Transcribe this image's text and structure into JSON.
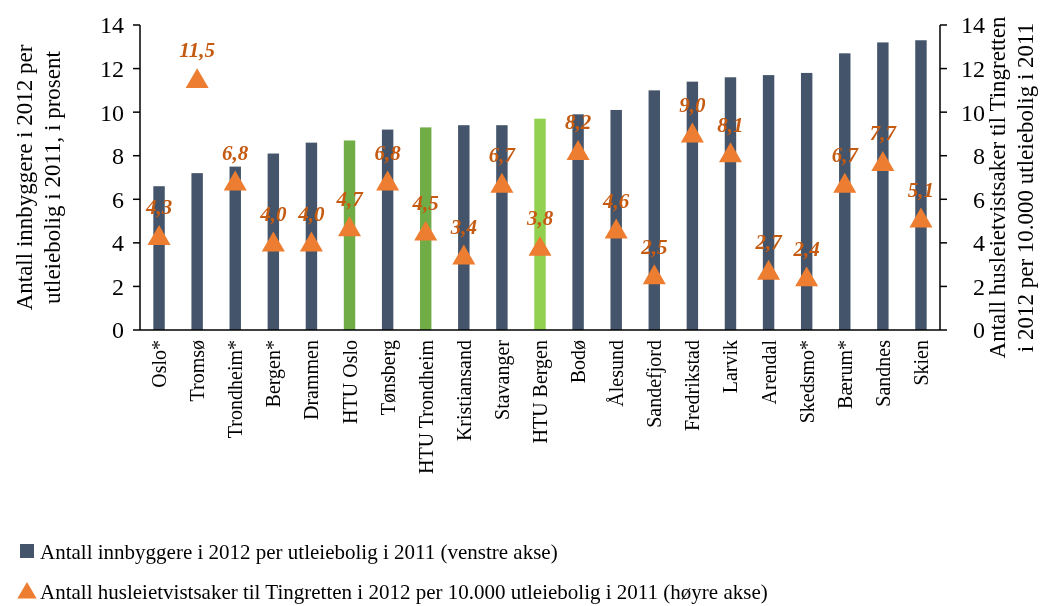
{
  "chart_data": {
    "type": "bar",
    "ylabel": "Antall innbyggere i 2012 per utleiebolig i 2011, i prosent",
    "y2label": "Antall husleietvistsaker til Tingretten i 2012 per 10.000 utleiebolig i 2011",
    "categories": [
      "Oslo*",
      "Tromsø",
      "Trondheim*",
      "Bergen*",
      "Drammen",
      "HTU Oslo",
      "Tønsberg",
      "HTU Trondheim",
      "Kristiansand",
      "Stavanger",
      "HTU Bergen",
      "Bodø",
      "Ålesund",
      "Sandefjord",
      "Fredrikstad",
      "Larvik",
      "Arendal",
      "Skedsmo*",
      "Bærum*",
      "Sandnes",
      "Skien"
    ],
    "series": [
      {
        "name": "Antall innbyggere i 2012 per utleiebolig i 2011 (venstre akse)",
        "type": "bar",
        "color": "#44546a",
        "colors": [
          "#44546a",
          "#44546a",
          "#44546a",
          "#44546a",
          "#44546a",
          "#70ad47",
          "#44546a",
          "#70ad47",
          "#44546a",
          "#44546a",
          "#92d050",
          "#44546a",
          "#44546a",
          "#44546a",
          "#44546a",
          "#44546a",
          "#44546a",
          "#44546a",
          "#44546a",
          "#44546a",
          "#44546a"
        ],
        "values": [
          6.6,
          7.2,
          7.5,
          8.1,
          8.6,
          8.7,
          9.2,
          9.3,
          9.4,
          9.4,
          9.7,
          9.9,
          10.1,
          11.0,
          11.4,
          11.6,
          11.7,
          11.8,
          12.7,
          13.2,
          13.3
        ]
      },
      {
        "name": "Antall husleietvistsaker til Tingretten i 2012 per 10.000 utleiebolig i 2011 (høyre akse)",
        "type": "scatter",
        "axis": "y2",
        "marker": "triangle",
        "color": "#ed7d31",
        "values": [
          4.3,
          11.5,
          6.8,
          4.0,
          4.0,
          4.7,
          6.8,
          4.5,
          3.4,
          6.7,
          3.8,
          8.2,
          4.6,
          2.5,
          9.0,
          8.1,
          2.7,
          2.4,
          6.7,
          7.7,
          5.1
        ],
        "value_labels": [
          "4,3",
          "11,5",
          "6,8",
          "4,0",
          "4,0",
          "4,7",
          "6,8",
          "4,5",
          "3,4",
          "6,7",
          "3,8",
          "8,2",
          "4,6",
          "2,5",
          "9,0",
          "8,1",
          "2,7",
          "2,4",
          "6,7",
          "7,7",
          "5,1"
        ]
      }
    ],
    "ylim": [
      0,
      14
    ],
    "yticks": [
      0,
      2,
      4,
      6,
      8,
      10,
      12,
      14
    ],
    "y2lim": [
      0,
      14
    ],
    "y2ticks": [
      0,
      2,
      4,
      6,
      8,
      10,
      12,
      14
    ],
    "grid": false,
    "legend": "bottom"
  }
}
